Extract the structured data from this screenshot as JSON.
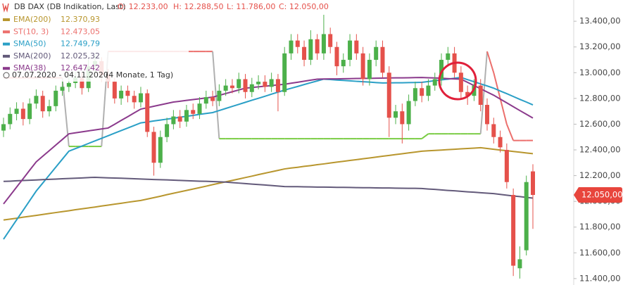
{
  "chart_data": {
    "type": "candlestick",
    "title": "DB DAX (DB Indikation, Last)",
    "ohlc_text": [
      "O: 12.233,00",
      "H: 12.288,50",
      "L: 11.786,00",
      "C: 12.050,00"
    ],
    "date_range": "07.07.2020 - 04.11.2020",
    "period": "(4 Monate, 1 Tag)",
    "up_color": "#4cb04a",
    "down_color": "#e5514b",
    "ylim": [
      11350,
      13565
    ],
    "yticks": [
      {
        "value": 11400,
        "label": "11.400,00"
      },
      {
        "value": 11600,
        "label": "11.600,00"
      },
      {
        "value": 11800,
        "label": "11.800,00"
      },
      {
        "value": 12000,
        "label": "12.000,00"
      },
      {
        "value": 12200,
        "label": "12.200,00"
      },
      {
        "value": 12400,
        "label": "12.400,00"
      },
      {
        "value": 12600,
        "label": "12.600,00"
      },
      {
        "value": 12800,
        "label": "12.800,00"
      },
      {
        "value": 13000,
        "label": "13.000,00"
      },
      {
        "value": 13200,
        "label": "13.200,00"
      },
      {
        "value": 13400,
        "label": "13.400,00"
      }
    ],
    "last_price": {
      "value": 12050,
      "label": "12.050,00"
    },
    "open": [
      12550,
      12600,
      12680,
      12720,
      12640,
      12760,
      12820,
      12700,
      12740,
      12860,
      12890,
      12920,
      12960,
      12880,
      13050,
      13090,
      12980,
      12930,
      12800,
      12860,
      12820,
      12770,
      12840,
      12540,
      12300,
      12500,
      12600,
      12660,
      12620,
      12710,
      12680,
      12760,
      12810,
      12780,
      12860,
      12900,
      12880,
      12950,
      12850,
      12910,
      12930,
      12890,
      12950,
      12850,
      13150,
      13250,
      13200,
      13100,
      13260,
      13150,
      13300,
      13200,
      13050,
      13100,
      13250,
      13150,
      12950,
      13100,
      13200,
      13000,
      12650,
      12700,
      12600,
      12780,
      12880,
      12820,
      12900,
      12950,
      13100,
      13150,
      13000,
      12850,
      12820,
      12900,
      12750,
      12600,
      12500,
      12400,
      12050,
      11480,
      11620,
      12233
    ],
    "high": [
      12650,
      12730,
      12770,
      12770,
      12800,
      12870,
      12860,
      12790,
      12900,
      12940,
      12970,
      13010,
      13000,
      13100,
      13140,
      13120,
      13030,
      12960,
      12900,
      12900,
      12860,
      12890,
      12870,
      12580,
      12550,
      12650,
      12710,
      12710,
      12750,
      12760,
      12810,
      12860,
      12860,
      12910,
      12950,
      12950,
      13000,
      12990,
      12960,
      12980,
      12980,
      13000,
      12990,
      13200,
      13300,
      13300,
      13250,
      13330,
      13300,
      13450,
      13350,
      13240,
      13150,
      13300,
      13300,
      13200,
      13150,
      13250,
      13250,
      13050,
      12750,
      12760,
      12830,
      12930,
      12930,
      12950,
      13000,
      13150,
      13200,
      13200,
      13050,
      12900,
      12950,
      12950,
      12800,
      12650,
      12550,
      12450,
      12100,
      11650,
      12200,
      12288.5
    ],
    "low": [
      12500,
      12560,
      12630,
      12590,
      12600,
      12720,
      12650,
      12660,
      12700,
      12820,
      12850,
      12880,
      12830,
      12850,
      13000,
      12930,
      12880,
      12760,
      12750,
      12770,
      12720,
      12730,
      12500,
      12200,
      12260,
      12460,
      12560,
      12570,
      12580,
      12640,
      12640,
      12720,
      12740,
      12740,
      12820,
      12840,
      12840,
      12800,
      12810,
      12870,
      12850,
      12850,
      12700,
      12820,
      13100,
      13150,
      13050,
      13060,
      13100,
      13100,
      13150,
      12980,
      13000,
      13050,
      13100,
      12900,
      12900,
      13050,
      12960,
      12500,
      12600,
      12450,
      12550,
      12740,
      12770,
      12780,
      12860,
      12900,
      13050,
      12960,
      12800,
      12750,
      12780,
      12700,
      12550,
      12450,
      12380,
      12100,
      11420,
      11400,
      11580,
      11786
    ],
    "close": [
      12600,
      12680,
      12720,
      12640,
      12760,
      12820,
      12700,
      12740,
      12860,
      12890,
      12920,
      12960,
      12880,
      13050,
      13090,
      12980,
      12930,
      12800,
      12860,
      12820,
      12770,
      12840,
      12540,
      12300,
      12500,
      12600,
      12660,
      12620,
      12710,
      12680,
      12760,
      12810,
      12780,
      12860,
      12900,
      12880,
      12950,
      12850,
      12910,
      12930,
      12890,
      12950,
      12850,
      13150,
      13250,
      13200,
      13100,
      13260,
      13150,
      13300,
      13200,
      13050,
      13100,
      13250,
      13150,
      12950,
      13100,
      13200,
      13000,
      12650,
      12700,
      12600,
      12780,
      12880,
      12820,
      12900,
      12950,
      13100,
      13150,
      13000,
      12850,
      12820,
      12900,
      12750,
      12600,
      12500,
      12420,
      12150,
      11500,
      11550,
      12150,
      12050
    ],
    "series": [
      {
        "name": "EMA(200)",
        "color": "#b8962e",
        "last_label": "12.370,93",
        "values": [
          11855,
          11862,
          11869,
          11877,
          11884,
          11891,
          11898,
          11906,
          11913,
          11920,
          11927,
          11935,
          11942,
          11949,
          11956,
          11964,
          11971,
          11978,
          11985,
          11993,
          12000,
          12007,
          12018,
          12029,
          12040,
          12052,
          12063,
          12074,
          12085,
          12096,
          12107,
          12118,
          12130,
          12141,
          12152,
          12163,
          12174,
          12185,
          12196,
          12208,
          12219,
          12230,
          12241,
          12252,
          12259,
          12265,
          12272,
          12278,
          12285,
          12291,
          12298,
          12305,
          12311,
          12318,
          12324,
          12331,
          12337,
          12344,
          12351,
          12357,
          12364,
          12370,
          12377,
          12383,
          12390,
          12393,
          12396,
          12399,
          12402,
          12405,
          12408,
          12411,
          12414,
          12417,
          12411,
          12405,
          12399,
          12394,
          12388,
          12382,
          12376,
          12370.93
        ]
      },
      {
        "name": "ST(10, 3)",
        "color": "#ec6f6c",
        "alt_color": "#7acc44",
        "last_label": "12.473,05",
        "values": [
          12960,
          12960,
          12960,
          12960,
          12960,
          12960,
          12960,
          12960,
          12960,
          12960,
          12427,
          12427,
          12427,
          12427,
          12427,
          12427,
          13165,
          13165,
          13165,
          13165,
          13165,
          13165,
          13165,
          13165,
          13165,
          13165,
          13165,
          13165,
          13165,
          13165,
          13165,
          13165,
          13165,
          12487,
          12487,
          12487,
          12487,
          12487,
          12487,
          12487,
          12487,
          12487,
          12487,
          12487,
          12487,
          12487,
          12487,
          12487,
          12487,
          12487,
          12487,
          12487,
          12487,
          12487,
          12487,
          12487,
          12487,
          12487,
          12487,
          12487,
          12487,
          12487,
          12487,
          12487,
          12487,
          12525,
          12525,
          12525,
          12525,
          12525,
          12525,
          12525,
          12525,
          12525,
          13165,
          13000,
          12800,
          12600,
          12473,
          12473,
          12473,
          12473.05
        ]
      },
      {
        "name": "SMA(50)",
        "color": "#2a9fc6",
        "last_label": "12.749,79",
        "values": [
          11706,
          11781,
          11856,
          11930,
          12005,
          12080,
          12142,
          12204,
          12266,
          12328,
          12390,
          12410,
          12430,
          12450,
          12470,
          12490,
          12510,
          12530,
          12550,
          12570,
          12590,
          12610,
          12617,
          12625,
          12632,
          12639,
          12646,
          12654,
          12661,
          12668,
          12676,
          12683,
          12690,
          12706,
          12722,
          12738,
          12754,
          12770,
          12786,
          12801,
          12817,
          12833,
          12849,
          12865,
          12879,
          12893,
          12908,
          12922,
          12936,
          12950,
          12947,
          12943,
          12940,
          12937,
          12933,
          12930,
          12927,
          12923,
          12920,
          12921,
          12922,
          12922,
          12923,
          12924,
          12925,
          12931,
          12938,
          12944,
          12950,
          12957,
          12963,
          12946,
          12930,
          12913,
          12897,
          12880,
          12858,
          12837,
          12815,
          12793,
          12772,
          12749.79
        ]
      },
      {
        "name": "SMA(200)",
        "color": "#635a7a",
        "last_label": "12.025,32",
        "values": [
          12155,
          12157,
          12160,
          12162,
          12164,
          12166,
          12169,
          12171,
          12173,
          12176,
          12178,
          12180,
          12182,
          12185,
          12187,
          12185,
          12183,
          12181,
          12180,
          12178,
          12176,
          12174,
          12172,
          12170,
          12168,
          12167,
          12165,
          12163,
          12161,
          12159,
          12157,
          12156,
          12154,
          12152,
          12150,
          12146,
          12142,
          12138,
          12134,
          12131,
          12127,
          12123,
          12119,
          12115,
          12114,
          12114,
          12113,
          12112,
          12111,
          12111,
          12110,
          12109,
          12109,
          12108,
          12107,
          12106,
          12106,
          12105,
          12104,
          12104,
          12103,
          12102,
          12101,
          12101,
          12100,
          12096,
          12093,
          12089,
          12085,
          12082,
          12078,
          12074,
          12071,
          12067,
          12064,
          12060,
          12054,
          12048,
          12042,
          12037,
          12031,
          12025.32
        ]
      },
      {
        "name": "SMA(38)",
        "color": "#8b3a8c",
        "last_label": "12.647,42",
        "values": [
          11980,
          12045,
          12111,
          12176,
          12242,
          12307,
          12351,
          12394,
          12438,
          12481,
          12525,
          12533,
          12540,
          12548,
          12555,
          12563,
          12570,
          12599,
          12629,
          12658,
          12688,
          12717,
          12728,
          12739,
          12750,
          12761,
          12772,
          12778,
          12785,
          12791,
          12797,
          12804,
          12810,
          12824,
          12838,
          12852,
          12866,
          12880,
          12885,
          12890,
          12895,
          12900,
          12905,
          12910,
          12918,
          12926,
          12934,
          12942,
          12950,
          12951,
          12952,
          12952,
          12953,
          12954,
          12955,
          12956,
          12956,
          12957,
          12958,
          12959,
          12960,
          12960,
          12961,
          12962,
          12963,
          12961,
          12959,
          12957,
          12954,
          12952,
          12950,
          12925,
          12900,
          12875,
          12850,
          12825,
          12795,
          12766,
          12736,
          12706,
          12677,
          12647.42
        ]
      }
    ]
  }
}
